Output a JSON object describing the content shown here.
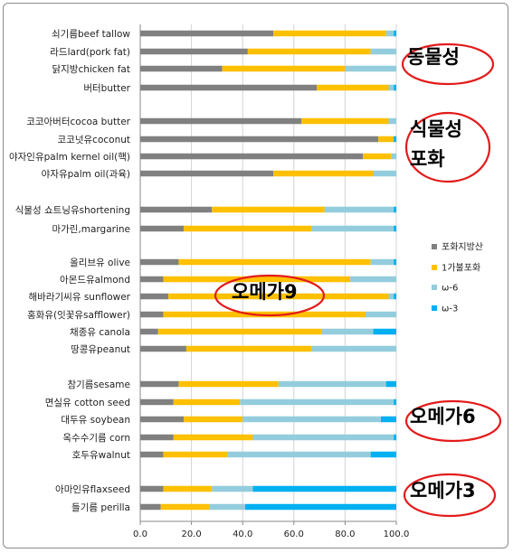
{
  "chart_data": {
    "type": "bar",
    "orientation": "horizontal",
    "stacked": true,
    "xlim": [
      0,
      100
    ],
    "xticks": [
      0,
      20,
      40,
      60,
      80,
      100
    ],
    "xtick_labels": [
      "0.0",
      "20.0",
      "40.0",
      "60.0",
      "80.0",
      "100.0"
    ],
    "grid": true,
    "legend_position": "right",
    "series": [
      {
        "name": "포화지방산",
        "color": "#808080"
      },
      {
        "name": "1가불포화",
        "color": "#ffc000"
      },
      {
        "name": "ω-6",
        "color": "#93cddd"
      },
      {
        "name": "ω-3",
        "color": "#00b0f0"
      }
    ],
    "groups": [
      [
        {
          "label": "쇠기름beef tallow",
          "values": [
            52,
            44,
            3,
            1
          ]
        },
        {
          "label": "라드lard(pork fat)",
          "values": [
            42,
            48,
            10,
            0
          ]
        },
        {
          "label": "닭지방chicken fat",
          "values": [
            32,
            48,
            20,
            0
          ]
        },
        {
          "label": "버터butter",
          "values": [
            69,
            28,
            2,
            1
          ]
        }
      ],
      [
        {
          "label": "코코아버터cocoa butter",
          "values": [
            63,
            34,
            3,
            0
          ]
        },
        {
          "label": "코코넛유coconut",
          "values": [
            93,
            6,
            0,
            1
          ]
        },
        {
          "label": "야자인유palm kernel oil(핵)",
          "values": [
            87,
            11,
            2,
            0
          ]
        },
        {
          "label": "야자유palm oil(과육)",
          "values": [
            52,
            39,
            9,
            0
          ]
        }
      ],
      [
        {
          "label": "식물성 쇼트닝유shortening",
          "values": [
            28,
            44,
            27,
            1
          ]
        },
        {
          "label": "마가린,margarine",
          "values": [
            17,
            50,
            32,
            1
          ]
        }
      ],
      [
        {
          "label": "올리브유 olive",
          "values": [
            15,
            75,
            9,
            1
          ]
        },
        {
          "label": "아몬드유almond",
          "values": [
            9,
            73,
            18,
            0
          ]
        },
        {
          "label": "해바라기씨유 sunflower",
          "values": [
            11,
            86,
            2,
            1
          ]
        },
        {
          "label": "홍화유(잇꽃유safflower)",
          "values": [
            9,
            79,
            12,
            0
          ]
        },
        {
          "label": "채종유 canola",
          "values": [
            7,
            64,
            20,
            9
          ]
        },
        {
          "label": "땅콩유peanut",
          "values": [
            18,
            49,
            33,
            0
          ]
        }
      ],
      [
        {
          "label": "참기름sesame",
          "values": [
            15,
            39,
            42,
            4
          ]
        },
        {
          "label": "면실유 cotton seed",
          "values": [
            13,
            26,
            60,
            1
          ]
        },
        {
          "label": "대두유 soybean",
          "values": [
            17,
            23,
            54,
            6
          ]
        },
        {
          "label": "옥수수기름 corn",
          "values": [
            13,
            31,
            55,
            1
          ]
        },
        {
          "label": "호두유walnut",
          "values": [
            9,
            25,
            56,
            10
          ]
        }
      ],
      [
        {
          "label": "아마인유flaxseed",
          "values": [
            9,
            19,
            16,
            56
          ]
        },
        {
          "label": "들기름 perilla",
          "values": [
            8,
            19,
            14,
            59
          ]
        }
      ]
    ],
    "annotations": [
      {
        "text": "동물성"
      },
      {
        "text": "식물성"
      },
      {
        "text": "포화"
      },
      {
        "text": "오메가9"
      },
      {
        "text": "오메가6"
      },
      {
        "text": "오메가3"
      }
    ]
  }
}
